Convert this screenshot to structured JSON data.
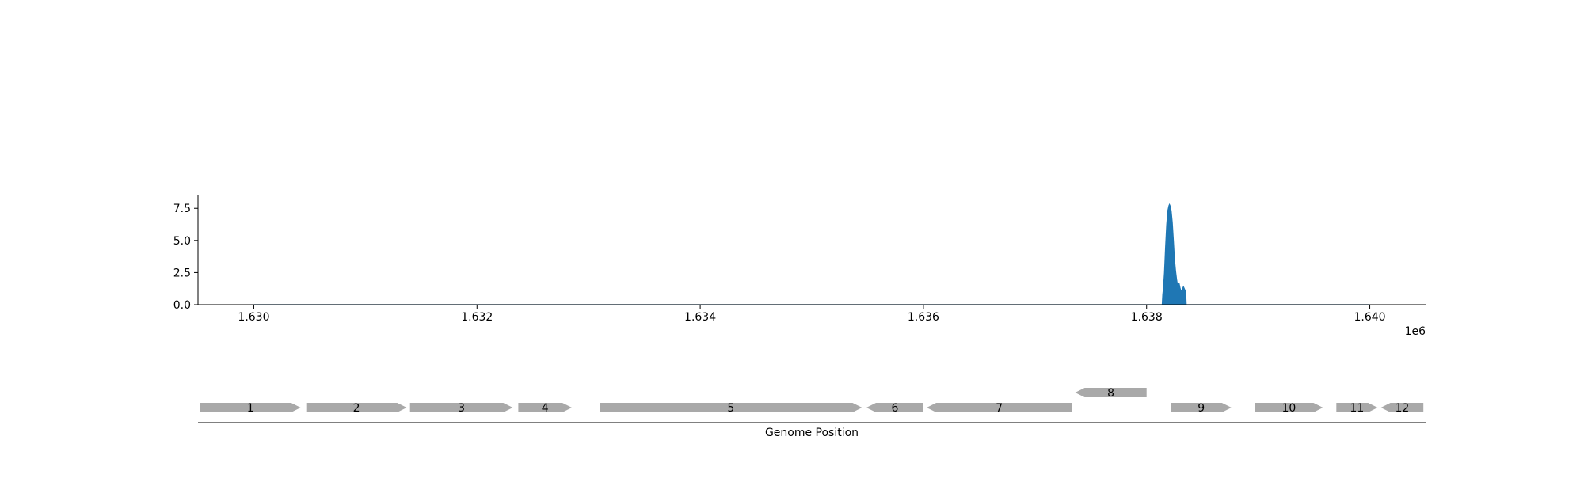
{
  "chart_data": [
    {
      "type": "area",
      "title": "",
      "xlabel": "",
      "ylabel": "",
      "x_offset_label": "1e6",
      "xlim": [
        1629500,
        1640500
      ],
      "ylim": [
        0,
        8.5
      ],
      "xticks": [
        1630000,
        1632000,
        1634000,
        1636000,
        1638000,
        1640000
      ],
      "xtick_labels": [
        "1.630",
        "1.632",
        "1.634",
        "1.636",
        "1.638",
        "1.640"
      ],
      "yticks": [
        0,
        2.5,
        5,
        7.5
      ],
      "ytick_labels": [
        "0.0",
        "2.5",
        "5.0",
        "7.5"
      ],
      "grid": false,
      "color": "#1f77b4",
      "series": [
        {
          "x": [
            1630000,
            1638140,
            1638145,
            1638150,
            1638160,
            1638170,
            1638180,
            1638190,
            1638200,
            1638205,
            1638210,
            1638220,
            1638230,
            1638240,
            1638250,
            1638260,
            1638270,
            1638280,
            1638290,
            1638300,
            1638310,
            1638320,
            1638330,
            1638340,
            1638350,
            1638355,
            1640000
          ],
          "y": [
            0,
            0,
            0.8,
            1.2,
            2.5,
            4.5,
            6.2,
            7.3,
            7.7,
            7.8,
            7.7,
            7.3,
            6.4,
            5.0,
            3.5,
            2.6,
            1.9,
            1.4,
            1.7,
            1.3,
            1.0,
            1.2,
            1.4,
            1.2,
            1.0,
            0,
            0
          ]
        }
      ]
    },
    {
      "type": "gene-track",
      "xlabel": "Genome Position",
      "xlim": [
        1629500,
        1640500
      ],
      "genes": [
        {
          "label": "1",
          "start": 1629520,
          "end": 1630420,
          "strand": "+",
          "row": 0
        },
        {
          "label": "2",
          "start": 1630470,
          "end": 1631370,
          "strand": "+",
          "row": 0
        },
        {
          "label": "3",
          "start": 1631400,
          "end": 1632320,
          "strand": "+",
          "row": 0
        },
        {
          "label": "4",
          "start": 1632370,
          "end": 1632850,
          "strand": "+",
          "row": 0
        },
        {
          "label": "5",
          "start": 1633100,
          "end": 1635450,
          "strand": "+",
          "row": 0
        },
        {
          "label": "6",
          "start": 1635490,
          "end": 1636000,
          "strand": "-",
          "row": 0
        },
        {
          "label": "7",
          "start": 1636030,
          "end": 1637330,
          "strand": "-",
          "row": 0
        },
        {
          "label": "8",
          "start": 1637360,
          "end": 1638000,
          "strand": "-",
          "row": 1
        },
        {
          "label": "9",
          "start": 1638220,
          "end": 1638760,
          "strand": "+",
          "row": 0
        },
        {
          "label": "10",
          "start": 1638970,
          "end": 1639580,
          "strand": "+",
          "row": 0
        },
        {
          "label": "11",
          "start": 1639700,
          "end": 1640070,
          "strand": "+",
          "row": 0
        },
        {
          "label": "12",
          "start": 1640100,
          "end": 1640480,
          "strand": "-",
          "row": 0
        }
      ]
    }
  ]
}
